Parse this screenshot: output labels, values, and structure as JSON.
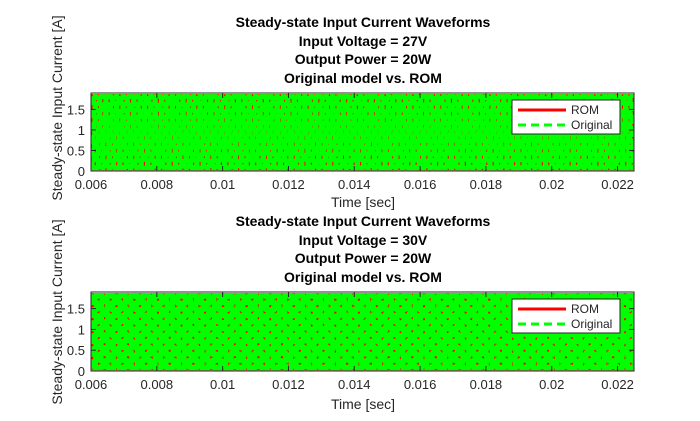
{
  "chart_data": [
    {
      "type": "line",
      "title_lines": [
        "Steady-state Input Current Waveforms",
        "Input Voltage = 27V",
        "Output Power = 20W",
        "Original model vs. ROM"
      ],
      "xlabel": "Time [sec]",
      "ylabel": "Steady-state Input Current [A]",
      "xlim": [
        0.006,
        0.0225
      ],
      "ylim": [
        0,
        1.9
      ],
      "xticks": [
        0.006,
        0.008,
        0.01,
        0.012,
        0.014,
        0.016,
        0.018,
        0.02,
        0.022
      ],
      "xtick_labels": [
        "0.006",
        "0.008",
        "0.01",
        "0.012",
        "0.014",
        "0.016",
        "0.018",
        "0.02",
        "0.022"
      ],
      "yticks": [
        0,
        0.5,
        1,
        1.5
      ],
      "ytick_labels": [
        "0",
        "0.5",
        "1",
        "1.5"
      ],
      "legend_position": "top-right",
      "series": [
        {
          "name": "ROM",
          "color": "#ff0000",
          "style": "solid",
          "peak": 1.87,
          "period": 0.00013
        },
        {
          "name": "Original",
          "color": "#00ff00",
          "style": "dashed",
          "peak": 1.87,
          "period": 0.00013
        }
      ]
    },
    {
      "type": "line",
      "title_lines": [
        "Steady-state Input Current Waveforms",
        "Input Voltage = 30V",
        "Output Power = 20W",
        "Original model vs. ROM"
      ],
      "xlabel": "Time [sec]",
      "ylabel": "Steady-state Input Current [A]",
      "xlim": [
        0.006,
        0.0225
      ],
      "ylim": [
        0,
        1.9
      ],
      "xticks": [
        0.006,
        0.008,
        0.01,
        0.012,
        0.014,
        0.016,
        0.018,
        0.02,
        0.022
      ],
      "xtick_labels": [
        "0.006",
        "0.008",
        "0.01",
        "0.012",
        "0.014",
        "0.016",
        "0.018",
        "0.02",
        "0.022"
      ],
      "yticks": [
        0,
        0.5,
        1,
        1.5
      ],
      "ytick_labels": [
        "0",
        "0.5",
        "1",
        "1.5"
      ],
      "legend_position": "top-right",
      "series": [
        {
          "name": "ROM",
          "color": "#ff0000",
          "style": "solid",
          "peak": 1.87,
          "period": 0.00011
        },
        {
          "name": "Original",
          "color": "#00ff00",
          "style": "dashed",
          "peak": 1.87,
          "period": 0.00011
        }
      ]
    }
  ]
}
